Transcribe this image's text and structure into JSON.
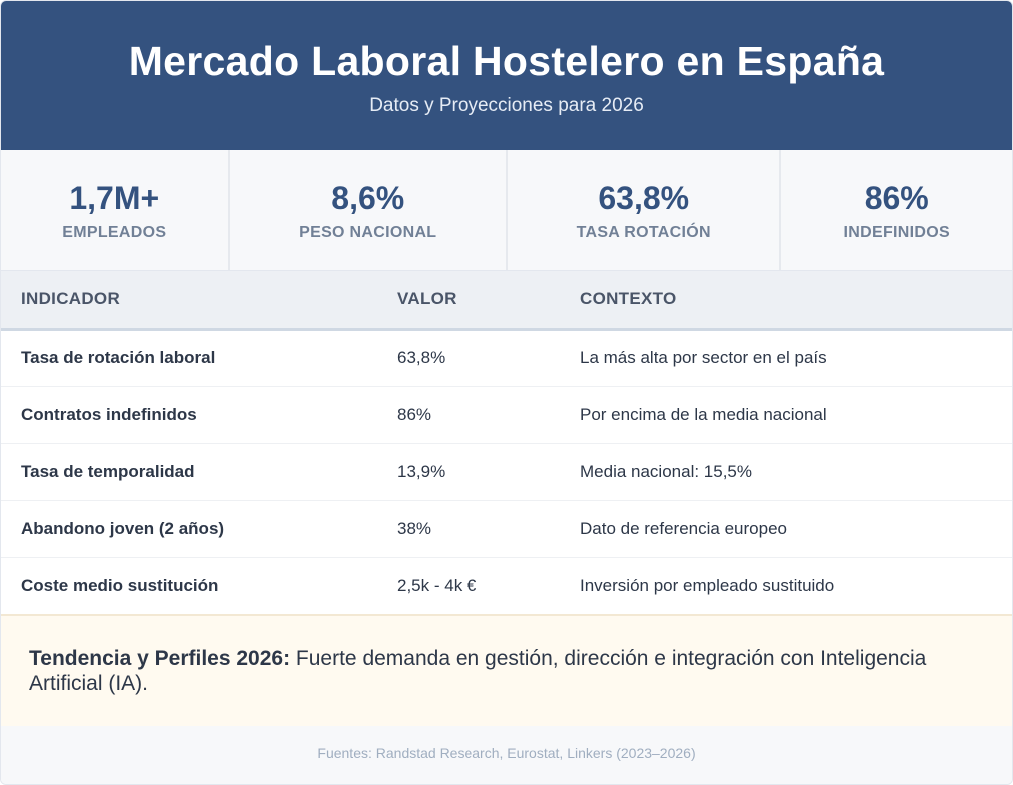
{
  "header": {
    "title": "Mercado Laboral Hostelero en España",
    "subtitle": "Datos y Proyecciones para 2026"
  },
  "stats": [
    {
      "value": "1,7M+",
      "label": "EMPLEADOS"
    },
    {
      "value": "8,6%",
      "label": "PESO NACIONAL"
    },
    {
      "value": "63,8%",
      "label": "TASA ROTACIÓN"
    },
    {
      "value": "86%",
      "label": "INDEFINIDOS"
    }
  ],
  "table": {
    "headers": [
      "INDICADOR",
      "VALOR",
      "CONTEXTO"
    ],
    "rows": [
      {
        "indicator": "Tasa de rotación laboral",
        "value": "63,8%",
        "context": "La más alta por sector en el país"
      },
      {
        "indicator": "Contratos indefinidos",
        "value": "86%",
        "context": "Por encima de la media nacional"
      },
      {
        "indicator": "Tasa de temporalidad",
        "value": "13,9%",
        "context": "Media nacional: 15,5%"
      },
      {
        "indicator": "Abandono joven (2 años)",
        "value": "38%",
        "context": "Dato de referencia europeo"
      },
      {
        "indicator": "Coste medio sustitución",
        "value": "2,5k - 4k €",
        "context": "Inversión por empleado sustituido"
      }
    ]
  },
  "trend": {
    "label": "Tendencia y Perfiles 2026:",
    "text": "Fuerte demanda en gestión, dirección e integración con Inteligencia Artificial (IA)."
  },
  "footer": {
    "sources": "Fuentes: Randstad Research, Eurostat, Linkers (2023–2026)"
  }
}
